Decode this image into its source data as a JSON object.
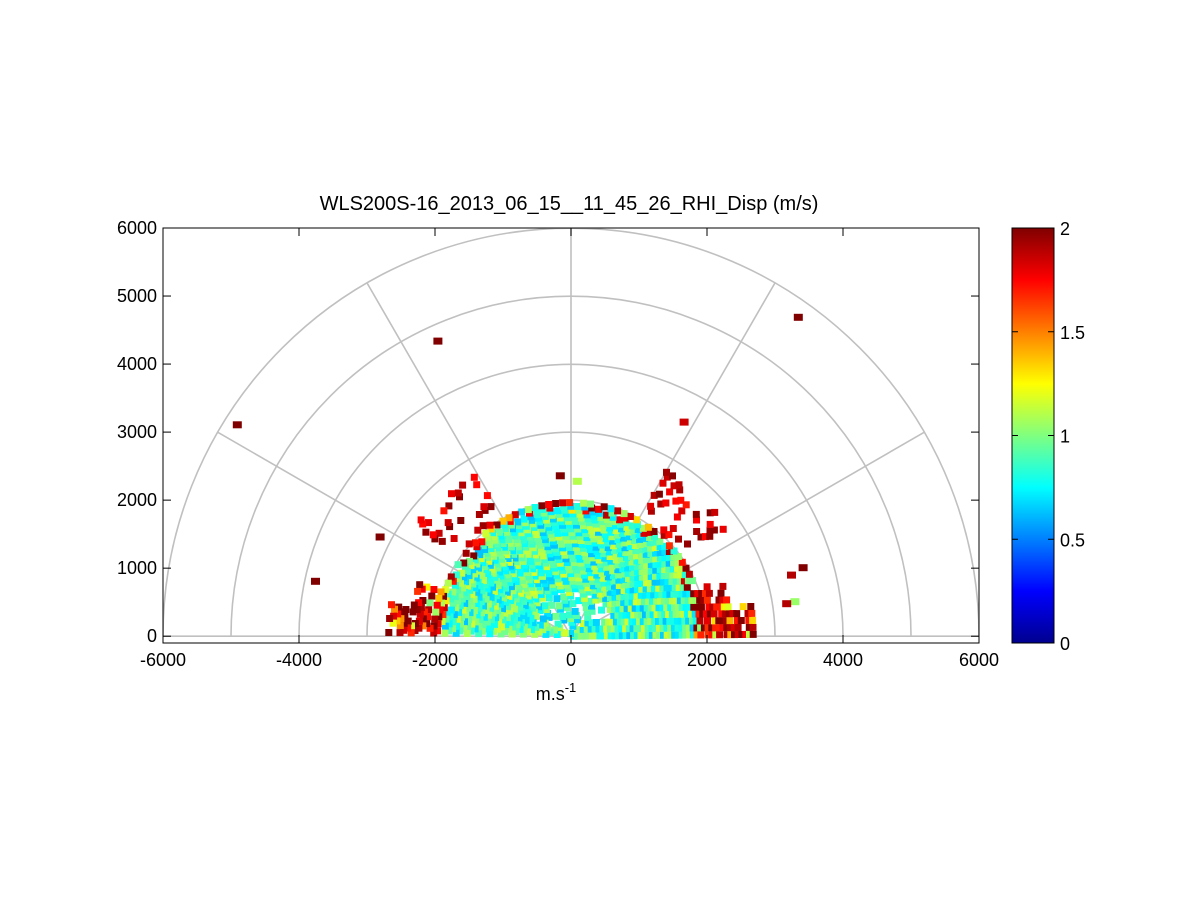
{
  "chart_data": {
    "type": "heatmap",
    "subtype": "polar-rhi-scan",
    "title": "WLS200S-16_2013_06_15__11_45_26_RHI_Disp (m/s)",
    "xlabel": "m.s",
    "xlabel_sup": "-1",
    "ylabel": "",
    "xlim": [
      -6000,
      6000
    ],
    "ylim": [
      -100,
      6000
    ],
    "xticks": [
      -6000,
      -4000,
      -2000,
      0,
      2000,
      4000,
      6000
    ],
    "xtick_labels": [
      "-6000",
      "-4000",
      "-2000",
      "0",
      "2000",
      "4000",
      "6000"
    ],
    "yticks": [
      0,
      1000,
      2000,
      3000,
      4000,
      5000,
      6000
    ],
    "ytick_labels": [
      "0",
      "1000",
      "2000",
      "3000",
      "4000",
      "5000",
      "6000"
    ],
    "polar_grid": {
      "ring_radii_m": [
        1000,
        2000,
        3000,
        4000,
        5000,
        6000
      ],
      "spoke_angles_deg": [
        0,
        30,
        60,
        90,
        120,
        150,
        180
      ]
    },
    "colorbar": {
      "colormap": "jet",
      "min": 0,
      "max": 2,
      "ticks": [
        0,
        0.5,
        1,
        1.5,
        2
      ],
      "tick_labels": [
        "0",
        "0.5",
        "1",
        "1.5",
        "2"
      ]
    },
    "data_summary": {
      "core_max_range_m": 2000,
      "core_typical_value": 0.9,
      "outer_shell_range_m": [
        2000,
        3000
      ],
      "outer_shell_typical_value": 1.9
    },
    "outlier_points": [
      {
        "x": -4900,
        "y": 3100,
        "value": 2.0
      },
      {
        "x": -1950,
        "y": 4330,
        "value": 2.0
      },
      {
        "x": 3350,
        "y": 4680,
        "value": 2.0
      },
      {
        "x": 1670,
        "y": 3140,
        "value": 1.85
      },
      {
        "x": -3750,
        "y": 800,
        "value": 2.0
      },
      {
        "x": 3300,
        "y": 500,
        "value": 1.05
      },
      {
        "x": 3180,
        "y": 470,
        "value": 1.9
      },
      {
        "x": 3250,
        "y": 890,
        "value": 1.9
      },
      {
        "x": 3420,
        "y": 1000,
        "value": 2.0
      },
      {
        "x": -2800,
        "y": 1450,
        "value": 2.0
      },
      {
        "x": 100,
        "y": 2270,
        "value": 1.1
      },
      {
        "x": -150,
        "y": 2350,
        "value": 2.0
      }
    ]
  }
}
